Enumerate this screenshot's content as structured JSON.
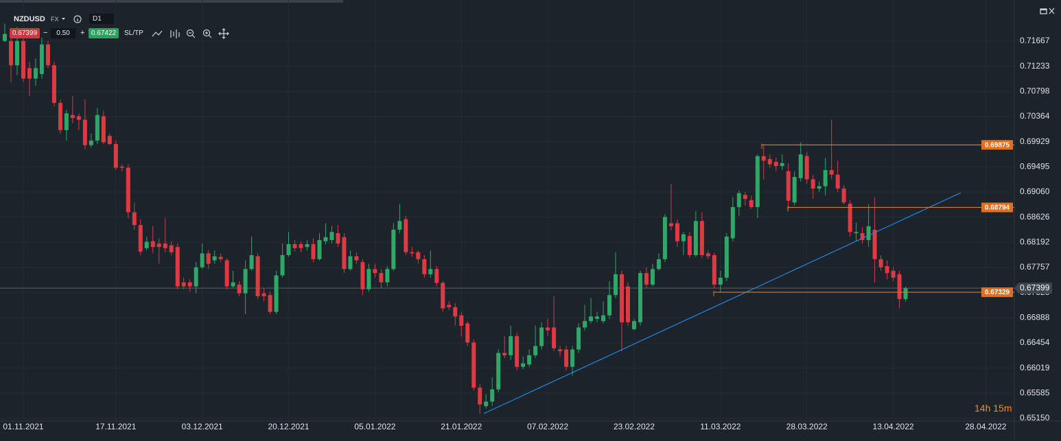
{
  "header": {
    "symbol": "NZDUSD",
    "market": "FX",
    "timeframe": "D1",
    "bid": "0.67399",
    "spread_minus": "−",
    "spread": "0.50",
    "spread_plus": "+",
    "ask": "0.67422",
    "sltp": "SL/TP",
    "countdown": "14h 15m"
  },
  "chart_data": {
    "type": "candlestick",
    "categories": [
      null,
      null,
      null,
      "01.11.2021",
      null,
      null,
      null,
      null,
      null,
      null,
      null,
      null,
      null,
      null,
      null,
      null,
      null,
      null,
      "17.11.2021",
      null,
      null,
      null,
      null,
      null,
      null,
      null,
      null,
      null,
      null,
      null,
      null,
      null,
      "03.12.2021",
      null,
      null,
      null,
      null,
      null,
      null,
      null,
      null,
      null,
      null,
      null,
      null,
      null,
      "20.12.2021",
      null,
      null,
      null,
      null,
      null,
      null,
      null,
      null,
      null,
      null,
      null,
      null,
      null,
      "05.01.2022",
      null,
      null,
      null,
      null,
      null,
      null,
      null,
      null,
      null,
      null,
      null,
      null,
      null,
      "21.01.2022",
      null,
      null,
      null,
      null,
      null,
      null,
      null,
      null,
      null,
      null,
      null,
      null,
      null,
      "07.02.2022",
      null,
      null,
      null,
      null,
      null,
      null,
      null,
      null,
      null,
      null,
      null,
      null,
      null,
      "23.02.2022",
      null,
      null,
      null,
      null,
      null,
      null,
      null,
      null,
      null,
      null,
      null,
      null,
      null,
      "11.03.2022",
      null,
      null,
      null,
      null,
      null,
      null,
      null,
      null,
      null,
      null,
      null,
      null,
      null,
      "28.03.2022",
      null,
      null,
      null,
      null,
      null,
      null,
      null,
      null,
      null,
      null,
      null,
      null,
      null,
      "13.04.2022",
      null,
      null,
      null,
      null,
      null,
      null,
      null,
      null,
      null,
      null,
      null,
      null,
      null,
      null,
      "28.04.2022",
      null,
      null,
      null,
      null,
      null
    ],
    "open": [
      0.7167,
      0.7167,
      0.7125,
      0.7167,
      0.712,
      0.7102,
      0.711,
      0.7161,
      0.7125,
      0.706,
      0.7013,
      0.7039,
      0.7037,
      0.7031,
      0.6987,
      0.6995,
      0.7037,
      0.7003,
      0.6989,
      0.695,
      0.6948,
      0.6871,
      0.6849,
      0.6809,
      0.6821,
      0.6817,
      0.6817,
      0.6814,
      0.6811,
      0.675,
      0.675,
      0.6743,
      0.6776,
      0.68,
      0.6788,
      0.6794,
      0.6788,
      0.6743,
      0.6746,
      0.6731,
      0.6773,
      0.6795,
      0.6731,
      0.6728,
      0.6699,
      0.6762,
      0.6797,
      0.6816,
      0.6816,
      0.6811,
      0.6816,
      0.679,
      0.6821,
      0.6823,
      0.6835,
      0.6828,
      0.6773,
      0.6795,
      0.6785,
      0.6738,
      0.6773,
      0.6766,
      0.675,
      0.6773,
      0.6841,
      0.6859,
      0.6802,
      0.6802,
      0.679,
      0.6764,
      0.6773,
      0.6749,
      0.6711,
      0.6707,
      0.6693,
      0.6679,
      0.6646,
      0.6568,
      0.6536,
      0.6544,
      0.6565,
      0.6628,
      0.6624,
      0.6657,
      0.6604,
      0.6608,
      0.6624,
      0.664,
      0.6672,
      0.6672,
      0.6634,
      0.6634,
      0.6604,
      0.6634,
      0.6672,
      0.6683,
      0.6687,
      0.6683,
      0.6693,
      0.6728,
      0.6764,
      0.6743,
      0.6669,
      0.6681,
      0.6766,
      0.6746,
      0.6773,
      0.679,
      0.6852,
      0.6852,
      0.6821,
      0.683,
      0.6797,
      0.6856,
      0.68,
      0.6797,
      0.6746,
      0.6758,
      0.6826,
      0.688,
      0.6901,
      0.6892,
      0.688,
      0.6968,
      0.6963,
      0.6958,
      0.6951,
      0.6942,
      0.6888,
      0.693,
      0.6968,
      0.6928,
      0.6912,
      0.6916,
      0.6944,
      0.6936,
      0.6912,
      0.6886,
      0.6835,
      0.6835,
      0.6823,
      0.6841,
      0.679,
      0.6778,
      0.677,
      0.6764,
      0.6721,
      null,
      null,
      null,
      null,
      null,
      null,
      null,
      null,
      null,
      null,
      null,
      null,
      null,
      null,
      null,
      null,
      null,
      null
    ],
    "high": [
      0.7197,
      0.7185,
      0.7191,
      0.7173,
      0.7131,
      0.7137,
      0.7173,
      0.7167,
      0.7131,
      0.7066,
      0.7048,
      0.7072,
      0.7042,
      0.7066,
      0.7007,
      0.7051,
      0.7046,
      0.7007,
      0.6995,
      0.6954,
      0.6954,
      0.6888,
      0.6859,
      0.6829,
      0.6847,
      0.6826,
      0.6861,
      0.6821,
      0.6817,
      0.6758,
      0.6755,
      0.6785,
      0.6817,
      0.6805,
      0.6805,
      0.68,
      0.6792,
      0.677,
      0.6752,
      0.6788,
      0.6829,
      0.68,
      0.674,
      0.6734,
      0.677,
      0.6817,
      0.6837,
      0.6823,
      0.6821,
      0.6823,
      0.6826,
      0.6835,
      0.6852,
      0.6847,
      0.6849,
      0.6835,
      0.6805,
      0.6802,
      0.679,
      0.6782,
      0.6782,
      0.6773,
      0.6778,
      0.6853,
      0.6885,
      0.6865,
      0.6811,
      0.6805,
      0.6797,
      0.6805,
      0.6778,
      0.6752,
      0.6717,
      0.6714,
      0.6699,
      0.6683,
      0.6651,
      0.6574,
      0.6557,
      0.6586,
      0.6634,
      0.6657,
      0.6675,
      0.6663,
      0.6622,
      0.6634,
      0.6675,
      0.6681,
      0.6687,
      0.6726,
      0.664,
      0.664,
      0.664,
      0.6679,
      0.6711,
      0.6723,
      0.6699,
      0.6717,
      0.6752,
      0.6802,
      0.677,
      0.675,
      0.6687,
      0.677,
      0.6776,
      0.6782,
      0.68,
      0.6868,
      0.692,
      0.6859,
      0.6837,
      0.6837,
      0.6873,
      0.6871,
      0.6805,
      0.6802,
      0.677,
      0.6835,
      0.6897,
      0.6909,
      0.6906,
      0.69,
      0.6971,
      0.6987,
      0.6971,
      0.6965,
      0.6971,
      0.6956,
      0.6942,
      0.6992,
      0.6975,
      0.6935,
      0.6924,
      0.6965,
      0.7031,
      0.696,
      0.6918,
      0.6892,
      0.6853,
      0.6845,
      0.6885,
      0.6897,
      0.6797,
      0.6788,
      0.6776,
      0.677,
      0.6743,
      null,
      null,
      null,
      null,
      null,
      null,
      null,
      null,
      null,
      null,
      null,
      null,
      null,
      null,
      null,
      null,
      null,
      null
    ],
    "low": [
      0.7165,
      0.7096,
      0.7108,
      0.7096,
      0.7072,
      0.709,
      0.7102,
      0.712,
      0.7054,
      0.7007,
      0.6995,
      0.7025,
      0.7013,
      0.698,
      0.6983,
      0.6989,
      0.6989,
      0.6987,
      0.6944,
      0.6942,
      0.6861,
      0.6841,
      0.6797,
      0.6805,
      0.68,
      0.6782,
      0.6802,
      0.6797,
      0.6738,
      0.6738,
      0.6734,
      0.6731,
      0.6773,
      0.6773,
      0.6782,
      0.6785,
      0.6738,
      0.674,
      0.6726,
      0.6695,
      0.677,
      0.6721,
      0.6717,
      0.6695,
      0.6695,
      0.6758,
      0.6794,
      0.6804,
      0.6802,
      0.6805,
      0.6785,
      0.6788,
      0.6816,
      0.6817,
      0.6811,
      0.6766,
      0.677,
      0.6782,
      0.6728,
      0.6734,
      0.6758,
      0.674,
      0.6743,
      0.677,
      0.6835,
      0.6797,
      0.6794,
      0.6782,
      0.6758,
      0.6758,
      0.6743,
      0.6699,
      0.6702,
      0.6675,
      0.6657,
      0.664,
      0.6563,
      0.6523,
      0.6532,
      0.6536,
      0.656,
      0.6619,
      0.6616,
      0.6598,
      0.66,
      0.6604,
      0.6619,
      0.6634,
      0.6657,
      0.6631,
      0.6622,
      0.6598,
      0.6589,
      0.6628,
      0.6667,
      0.6679,
      0.6681,
      0.6679,
      0.6687,
      0.6723,
      0.6631,
      0.6675,
      0.6667,
      0.6675,
      0.674,
      0.6743,
      0.677,
      0.6785,
      0.684,
      0.6811,
      0.6797,
      0.6792,
      0.6794,
      0.6792,
      0.679,
      0.674,
      0.6734,
      0.6752,
      0.6821,
      0.6865,
      0.6883,
      0.6877,
      0.6861,
      0.6928,
      0.6948,
      0.6942,
      0.6944,
      0.6877,
      0.6883,
      0.6924,
      0.692,
      0.6894,
      0.6906,
      0.69,
      0.6928,
      0.6906,
      0.6885,
      0.6829,
      0.6821,
      0.6817,
      0.6811,
      0.675,
      0.677,
      0.6755,
      0.6752,
      0.6705,
      0.6717,
      null,
      null,
      null,
      null,
      null,
      null,
      null,
      null,
      null,
      null,
      null,
      null,
      null,
      null,
      null,
      null,
      null,
      null
    ],
    "close": [
      0.7179,
      0.7125,
      0.7167,
      0.7102,
      0.7102,
      0.712,
      0.7161,
      0.7125,
      0.706,
      0.7013,
      0.7042,
      0.7034,
      0.7031,
      0.6987,
      0.6995,
      0.7039,
      0.6992,
      0.6989,
      0.6948,
      0.6948,
      0.6871,
      0.6849,
      0.6803,
      0.682,
      0.6811,
      0.6811,
      0.6809,
      0.6802,
      0.6743,
      0.6743,
      0.6743,
      0.6776,
      0.68,
      0.6782,
      0.6795,
      0.679,
      0.6743,
      0.675,
      0.6731,
      0.6773,
      0.6797,
      0.6726,
      0.6726,
      0.6699,
      0.6762,
      0.6797,
      0.6816,
      0.6809,
      0.6809,
      0.6816,
      0.679,
      0.6823,
      0.6828,
      0.6837,
      0.6817,
      0.6773,
      0.6795,
      0.6788,
      0.6738,
      0.6773,
      0.6766,
      0.675,
      0.6773,
      0.6841,
      0.6856,
      0.6802,
      0.68,
      0.679,
      0.6764,
      0.6773,
      0.6749,
      0.6705,
      0.6707,
      0.6691,
      0.6675,
      0.6646,
      0.6568,
      0.6539,
      0.6544,
      0.6565,
      0.6628,
      0.6624,
      0.6657,
      0.6604,
      0.661,
      0.6624,
      0.664,
      0.6672,
      0.6667,
      0.6636,
      0.6631,
      0.6604,
      0.6634,
      0.6672,
      0.6683,
      0.6691,
      0.6691,
      0.6693,
      0.6728,
      0.6764,
      0.6681,
      0.6681,
      0.6683,
      0.6766,
      0.6746,
      0.6773,
      0.679,
      0.6863,
      0.6847,
      0.6821,
      0.6833,
      0.6797,
      0.6856,
      0.6797,
      0.6795,
      0.6746,
      0.6758,
      0.6829,
      0.688,
      0.6904,
      0.6894,
      0.688,
      0.6968,
      0.696,
      0.6954,
      0.6951,
      0.6956,
      0.6891,
      0.6932,
      0.6971,
      0.6928,
      0.6912,
      0.6916,
      0.6944,
      0.6936,
      0.6912,
      0.6888,
      0.6837,
      0.6837,
      0.6823,
      0.6847,
      0.679,
      0.6776,
      0.6766,
      0.6758,
      0.6721,
      0.67399,
      null,
      null,
      null,
      null,
      null,
      null,
      null,
      null,
      null,
      null,
      null,
      null,
      null,
      null,
      null,
      null,
      null,
      null
    ],
    "up_color": "#2ea866",
    "down_color": "#dd3a43",
    "ylim": [
      0.65114,
      0.72378
    ],
    "yticks": [
      0.71667,
      0.71233,
      0.70798,
      0.70364,
      0.69929,
      0.69495,
      {
        "value": 0.6906,
        "label": "0.69060"
      },
      0.68626,
      0.68192,
      0.67757,
      0.67323,
      0.66888,
      0.66454,
      0.66019,
      0.65585,
      {
        "value": 0.6515,
        "label": "0.65150"
      }
    ],
    "grid": true,
    "current_price": 0.67399,
    "levels": [
      0.69875,
      0.68794,
      0.67329
    ],
    "level_color": "#d9772b"
  }
}
